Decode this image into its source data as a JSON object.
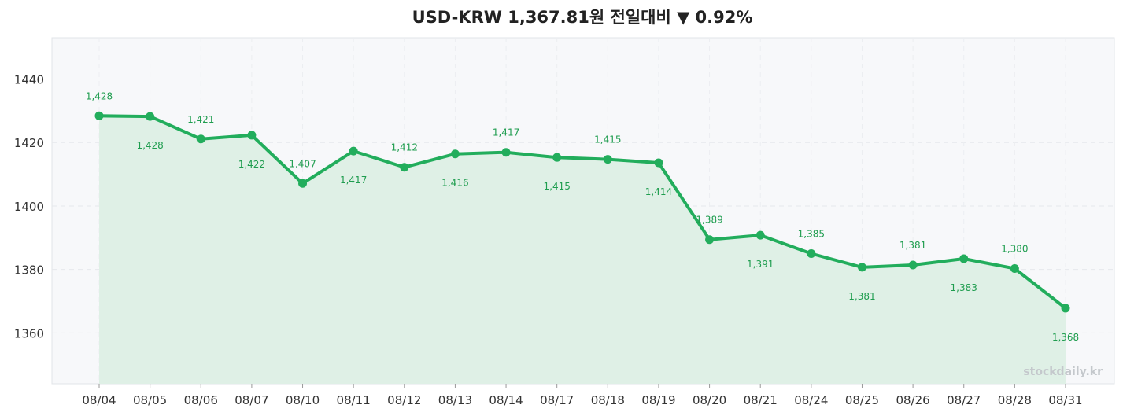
{
  "title": "USD-KRW 1,367.81원 전일대비 ▼ 0.92%",
  "watermark": "stockdaily.kr",
  "colors": {
    "line": "#22ad5c",
    "fill": "#dff0e6",
    "plot_bg": "#f7f8fa",
    "label": "#1f9d4f"
  },
  "chart_data": {
    "type": "line",
    "title": "USD-KRW 1,367.81원 전일대비 ▼ 0.92%",
    "categories": [
      "08/04",
      "08/05",
      "08/06",
      "08/07",
      "08/10",
      "08/11",
      "08/12",
      "08/13",
      "08/14",
      "08/17",
      "08/18",
      "08/19",
      "08/20",
      "08/21",
      "08/24",
      "08/25",
      "08/26",
      "08/27",
      "08/28",
      "08/31"
    ],
    "values": [
      1428.4,
      1428.2,
      1421.1,
      1422.3,
      1407.1,
      1417.3,
      1412.2,
      1416.4,
      1416.9,
      1415.3,
      1414.7,
      1413.6,
      1389.4,
      1390.8,
      1385.0,
      1380.7,
      1381.4,
      1383.4,
      1380.3,
      1367.8
    ],
    "data_labels": [
      "1,428",
      "1,428",
      "1,421",
      "1,422",
      "1,407",
      "1,417",
      "1,412",
      "1,416",
      "1,417",
      "1,415",
      "1,415",
      "1,414",
      "1,389",
      "1,391",
      "1,385",
      "1,381",
      "1,381",
      "1,383",
      "1,380",
      "1,368"
    ],
    "label_positions": [
      "above",
      "below",
      "above",
      "below",
      "above",
      "below",
      "above",
      "below",
      "above",
      "below",
      "above",
      "below",
      "above",
      "below",
      "above",
      "below",
      "above",
      "below",
      "above",
      "below"
    ],
    "yticks": [
      1360,
      1380,
      1400,
      1420,
      1440
    ],
    "ylim": [
      1344,
      1453
    ],
    "grid": true,
    "xlabel": "",
    "ylabel": ""
  }
}
